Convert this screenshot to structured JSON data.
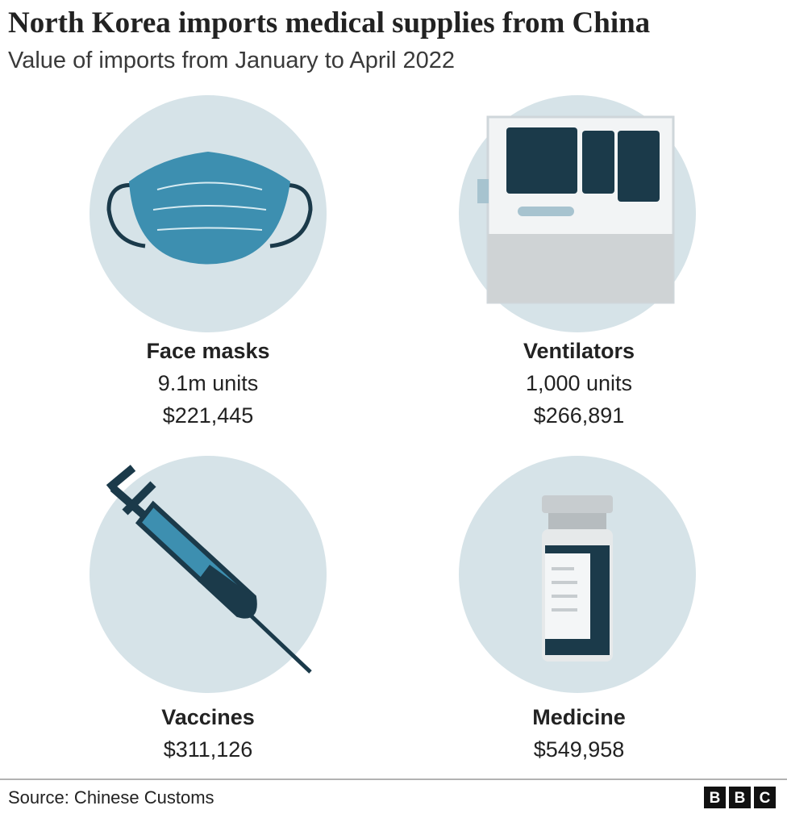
{
  "header": {
    "title": "North Korea imports medical supplies from China",
    "subtitle": "Value of imports from January to April 2022"
  },
  "items": [
    {
      "name": "Face masks",
      "units": "9.1m units",
      "value": "$221,445"
    },
    {
      "name": "Ventilators",
      "units": "1,000 units",
      "value": "$266,891"
    },
    {
      "name": "Vaccines",
      "value": "$311,126"
    },
    {
      "name": "Medicine",
      "value": "$549,958"
    }
  ],
  "footer": {
    "source": "Source: Chinese Customs",
    "logo": [
      "B",
      "B",
      "C"
    ]
  }
}
